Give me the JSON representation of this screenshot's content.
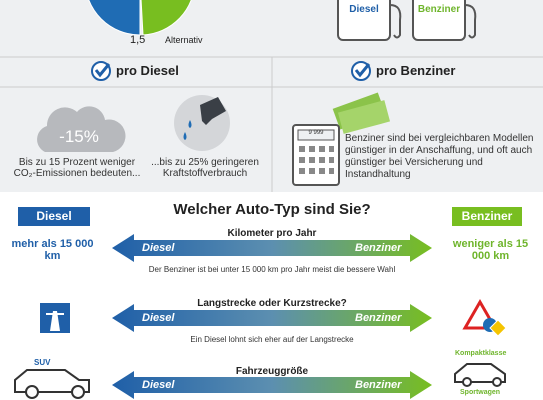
{
  "top": {
    "pie_label_small": "1,5",
    "pie_label_alt": "Alternativ",
    "pump_diesel": "Diesel",
    "pump_benziner": "Benziner"
  },
  "pro": {
    "diesel": {
      "title": "pro Diesel",
      "badge": "-15%",
      "text1": "Bis zu 15 Prozent weniger CO₂-Emissionen bedeuten...",
      "text2": "...bis zu 25% geringeren Kraftstoffverbrauch"
    },
    "benziner": {
      "title": "pro Benziner",
      "display": "9 999",
      "text": "Benziner sind bei vergleichbaren Modellen günstiger in der Anschaffung, und oft auch günstiger bei Versicherung und Instandhaltung"
    }
  },
  "quiz": {
    "diesel": "Diesel",
    "title": "Welcher Auto-Typ sind Sie?",
    "benziner": "Benziner",
    "rows": [
      {
        "question": "Kilometer pro Jahr",
        "left": "Diesel",
        "right": "Benziner",
        "left_note": "mehr als 15 000 km",
        "right_note": "weniger als 15 000 km",
        "caption": "Der Benziner ist bei unter 15 000 km pro Jahr meist die bessere Wahl"
      },
      {
        "question": "Langstrecke oder Kurzstrecke?",
        "left": "Diesel",
        "right": "Benziner",
        "caption": "Ein Diesel lohnt sich eher auf der Langstrecke"
      },
      {
        "question": "Fahrzeuggröße",
        "left": "Diesel",
        "right": "Benziner",
        "left_note": "SUV",
        "right_note": "Kompaktklasse",
        "right_note2": "Sportwagen"
      }
    ]
  }
}
